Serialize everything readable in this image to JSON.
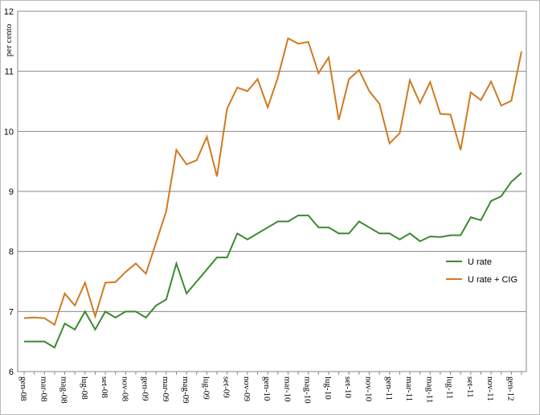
{
  "chart_data": {
    "type": "line",
    "y_label": "per cento",
    "categories": [
      "gen-08",
      null,
      "mar-08",
      null,
      "mag-08",
      null,
      "lug-08",
      null,
      "set-08",
      null,
      "nov-08",
      null,
      "gen-09",
      null,
      "mar-09",
      null,
      "mag-09",
      null,
      "lug-09",
      null,
      "set-09",
      null,
      "nov-09",
      null,
      "gen-10",
      null,
      "mar-10",
      null,
      "mag-10",
      null,
      "lug-10",
      null,
      "set-10",
      null,
      "nov-10",
      null,
      "gen-11",
      null,
      "mar-11",
      null,
      "mag-11",
      null,
      "lug-11",
      null,
      "set-11",
      null,
      "nov-11",
      null,
      "gen-12",
      null
    ],
    "series": [
      {
        "name": "U rate",
        "color": "#3a8a2e",
        "values": [
          6.5,
          6.5,
          6.5,
          6.4,
          6.8,
          6.7,
          7.0,
          6.7,
          7.0,
          6.9,
          7.0,
          7.0,
          6.9,
          7.1,
          7.2,
          7.8,
          7.3,
          7.5,
          7.7,
          7.9,
          7.9,
          8.3,
          8.2,
          8.3,
          8.4,
          8.5,
          8.5,
          8.6,
          8.6,
          8.4,
          8.4,
          8.3,
          8.3,
          8.5,
          8.4,
          8.3,
          8.3,
          8.2,
          8.3,
          8.17,
          8.25,
          8.24,
          8.27,
          8.27,
          8.57,
          8.52,
          8.84,
          8.92,
          9.16,
          9.31
        ]
      },
      {
        "name": "U rate + CIG",
        "color": "#d07a22",
        "values": [
          6.89,
          6.9,
          6.89,
          6.78,
          7.3,
          7.1,
          7.48,
          6.92,
          7.48,
          7.49,
          7.66,
          7.8,
          7.63,
          8.15,
          8.67,
          9.69,
          9.45,
          9.52,
          9.91,
          9.25,
          10.38,
          10.73,
          10.67,
          10.87,
          10.4,
          10.9,
          11.55,
          11.46,
          11.49,
          10.97,
          11.23,
          10.19,
          10.87,
          11.02,
          10.67,
          10.46,
          9.8,
          9.97,
          10.85,
          10.47,
          10.82,
          10.29,
          10.28,
          9.69,
          10.65,
          10.52,
          10.83,
          10.43,
          10.51,
          11.33
        ]
      }
    ],
    "ylim": [
      6,
      12
    ],
    "yticks": [
      6,
      7,
      8,
      9,
      10,
      11,
      12
    ],
    "grid": true,
    "legend": "right"
  }
}
